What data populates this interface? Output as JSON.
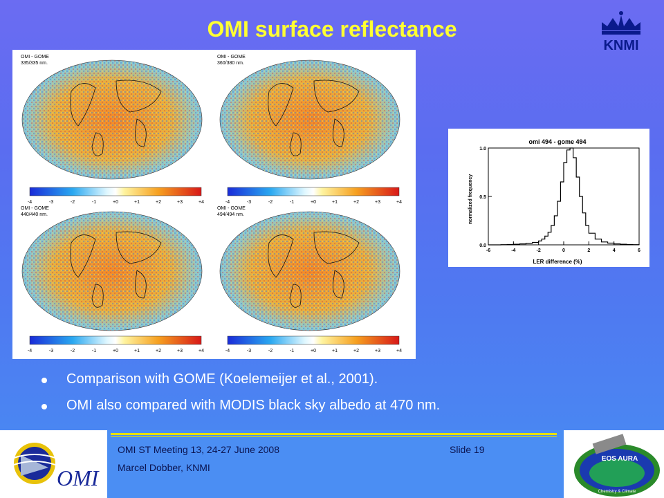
{
  "slide": {
    "title": "OMI surface reflectance",
    "logo_text": "KNMI",
    "maps": [
      {
        "label": "OMI - GOME",
        "wavelength": "335/335 nm."
      },
      {
        "label": "OMI - GOME",
        "wavelength": "360/380 nm."
      },
      {
        "label": "OMI - GOME",
        "wavelength": "440/440 nm."
      },
      {
        "label": "OMI - GOME",
        "wavelength": "494/494 nm."
      }
    ],
    "colorbar_ticks": [
      "-4",
      "-3",
      "-2",
      "-1",
      "+0",
      "+1",
      "+2",
      "+3",
      "+4"
    ],
    "bullets": [
      "Comparison with GOME (Koelemeijer et al., 2001).",
      "OMI also compared with MODIS black sky albedo at 470 nm."
    ]
  },
  "chart_data": {
    "type": "line",
    "title": "omi 494 - gome 494",
    "xlabel": "LER difference (%)",
    "ylabel": "normalized frequency",
    "xlim": [
      -6,
      6
    ],
    "ylim": [
      0,
      1.0
    ],
    "x_ticks": [
      "-6",
      "-4",
      "-2",
      "0",
      "2",
      "4",
      "6"
    ],
    "y_ticks": [
      "0.0",
      "0.5",
      "1.0"
    ],
    "x": [
      -6,
      -5.5,
      -5,
      -4.5,
      -4,
      -3.5,
      -3,
      -2.5,
      -2,
      -1.75,
      -1.5,
      -1.25,
      -1,
      -0.75,
      -0.5,
      -0.25,
      0,
      0.25,
      0.5,
      0.75,
      1,
      1.25,
      1.5,
      1.75,
      2,
      2.5,
      3,
      3.5,
      4,
      4.5,
      5,
      5.5,
      6
    ],
    "y": [
      0,
      0,
      0.002,
      0.004,
      0.006,
      0.01,
      0.015,
      0.025,
      0.04,
      0.06,
      0.09,
      0.13,
      0.2,
      0.3,
      0.45,
      0.65,
      0.85,
      0.98,
      1.0,
      0.9,
      0.7,
      0.5,
      0.33,
      0.2,
      0.12,
      0.06,
      0.03,
      0.018,
      0.01,
      0.006,
      0.004,
      0.002,
      0
    ]
  },
  "footer": {
    "meeting": "OMI ST Meeting 13, 24-27 June 2008",
    "author": "Marcel Dobber, KNMI",
    "slide_number": "Slide 19",
    "omi_logo_text": "OMI",
    "aura_logo_text": "EOS AURA",
    "aura_subtext": "Chemistry & Climate"
  }
}
